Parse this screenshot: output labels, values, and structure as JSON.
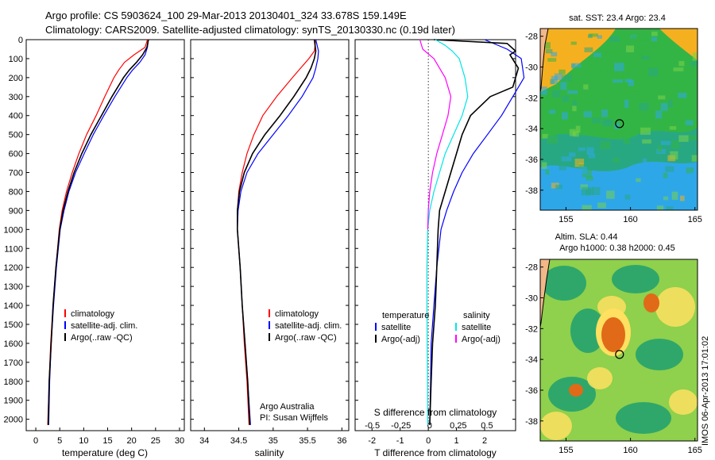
{
  "header": {
    "line1": "Argo profile: CS 5903624_100 29-Mar-2013 20130401_324 33.678S 159.149E",
    "line2": "Climatology: CARS2009. Satellite-adjusted climatology: synTS_20130330.nc (0.19d later)"
  },
  "chart_data": [
    {
      "type": "line",
      "id": "temperature",
      "xlabel": "temperature (deg C)",
      "ylabel": "",
      "xlim": [
        -2,
        31
      ],
      "ylim": [
        2060,
        0
      ],
      "xticks": [
        0,
        5,
        10,
        15,
        20,
        25,
        30
      ],
      "xtick_labels": [
        "0",
        "5",
        "10",
        "15",
        "20",
        "25",
        "30"
      ],
      "yticks": [
        0,
        100,
        200,
        300,
        400,
        500,
        600,
        700,
        800,
        900,
        1000,
        1100,
        1200,
        1300,
        1400,
        1500,
        1600,
        1700,
        1800,
        1900,
        2000
      ],
      "ytick_labels": [
        "0",
        "100",
        "200",
        "300",
        "400",
        "500",
        "600",
        "700",
        "800",
        "900",
        "1000",
        "1100",
        "1200",
        "1300",
        "1400",
        "1500",
        "1600",
        "1700",
        "1800",
        "1900",
        "2000"
      ],
      "legend": {
        "placement": "lower-center",
        "entries": [
          {
            "label": "climatology",
            "color": "#ff0000"
          },
          {
            "label": "satellite-adj. clim.",
            "color": "#0000ff"
          },
          {
            "label": "Argo(..raw -QC)",
            "color": "#000000"
          }
        ]
      },
      "series": [
        {
          "color": "#ff0000",
          "depth": [
            0,
            40,
            80,
            120,
            160,
            200,
            300,
            400,
            500,
            600,
            700,
            800,
            900,
            1000,
            1200,
            1400,
            1600,
            1800,
            2030
          ],
          "values": [
            23.3,
            22.8,
            20.5,
            18.5,
            17.3,
            16.3,
            14.4,
            12.6,
            10.6,
            9.0,
            7.6,
            6.4,
            5.5,
            4.9,
            4.2,
            3.6,
            3.1,
            2.8,
            2.5
          ]
        },
        {
          "color": "#0000ff",
          "depth": [
            0,
            40,
            80,
            120,
            160,
            200,
            300,
            400,
            500,
            600,
            700,
            800,
            900,
            1000,
            1200,
            1400,
            1600,
            1800,
            2030
          ],
          "values": [
            23.5,
            23.3,
            22.8,
            21.7,
            20.2,
            19.0,
            16.5,
            14.2,
            12.0,
            10.1,
            8.3,
            6.9,
            5.9,
            5.1,
            4.3,
            3.7,
            3.2,
            2.9,
            2.7
          ]
        },
        {
          "color": "#000000",
          "depth": [
            0,
            40,
            80,
            120,
            160,
            200,
            300,
            400,
            500,
            600,
            700,
            800,
            900,
            1000,
            1200,
            1400,
            1600,
            1800,
            2030
          ],
          "values": [
            23.5,
            23.2,
            22.3,
            21.0,
            19.5,
            18.3,
            15.9,
            13.7,
            11.5,
            9.6,
            8.0,
            6.7,
            5.7,
            5.0,
            4.2,
            3.6,
            3.2,
            2.8,
            2.6
          ]
        }
      ]
    },
    {
      "type": "line",
      "id": "salinity",
      "xlabel": "salinity",
      "xlim": [
        33.8,
        36.1
      ],
      "ylim": [
        2060,
        0
      ],
      "xticks": [
        34,
        34.5,
        35,
        35.5,
        36
      ],
      "xtick_labels": [
        "34",
        "34.5",
        "35",
        "35.5",
        "36"
      ],
      "legend": {
        "placement": "lower-right",
        "entries": [
          {
            "label": "climatology",
            "color": "#ff0000"
          },
          {
            "label": "satellite-adj. clim.",
            "color": "#0000ff"
          },
          {
            "label": "Argo(..raw -QC)",
            "color": "#000000"
          }
        ]
      },
      "annotation": [
        "Argo Australia",
        "PI: Susan Wijffels"
      ],
      "series": [
        {
          "color": "#ff0000",
          "depth": [
            0,
            60,
            100,
            150,
            200,
            300,
            400,
            500,
            600,
            700,
            800,
            900,
            1000,
            1200,
            1400,
            1600,
            1800,
            2030
          ],
          "values": [
            35.62,
            35.6,
            35.52,
            35.4,
            35.28,
            35.05,
            34.85,
            34.72,
            34.62,
            34.55,
            34.5,
            34.48,
            34.48,
            34.52,
            34.55,
            34.58,
            34.62,
            34.65
          ]
        },
        {
          "color": "#0000ff",
          "depth": [
            0,
            60,
            100,
            150,
            200,
            300,
            400,
            500,
            600,
            700,
            800,
            900,
            1000,
            1200,
            1400,
            1600,
            1800,
            2030
          ],
          "values": [
            35.62,
            35.66,
            35.65,
            35.62,
            35.58,
            35.42,
            35.22,
            35.0,
            34.78,
            34.62,
            34.53,
            34.49,
            34.48,
            34.52,
            34.55,
            34.59,
            34.63,
            34.67
          ]
        },
        {
          "color": "#000000",
          "depth": [
            0,
            60,
            100,
            150,
            200,
            300,
            400,
            500,
            600,
            700,
            800,
            900,
            1000,
            1200,
            1400,
            1600,
            1800,
            2030
          ],
          "values": [
            35.6,
            35.62,
            35.6,
            35.55,
            35.48,
            35.3,
            35.1,
            34.88,
            34.7,
            34.58,
            34.51,
            34.48,
            34.48,
            34.52,
            34.55,
            34.59,
            34.63,
            34.66
          ]
        }
      ]
    },
    {
      "type": "line",
      "id": "difference",
      "xlabel": "T difference from climatology",
      "xlabel2": "S difference from climatology",
      "xlim": [
        -2.6,
        3.1
      ],
      "ylim": [
        2060,
        0
      ],
      "xticks": [
        -2,
        -1,
        0,
        1,
        2
      ],
      "xtick_labels": [
        "-2",
        "-1",
        "0",
        "1",
        "2"
      ],
      "xticks_top": [
        -0.5,
        -0.25,
        0,
        0.25,
        0.5
      ],
      "xtick_labels_top": [
        "-0.5",
        "-0.25",
        "0",
        "0.25",
        "0.5"
      ],
      "legend": {
        "placement": "lower-center",
        "headers": [
          "temperature",
          "salinity"
        ],
        "entries": [
          {
            "label": "satellite",
            "color": "#0000ff"
          },
          {
            "label": "Argo(-adj)",
            "color": "#000000"
          },
          {
            "label": "satellite",
            "color": "#00e5e5"
          },
          {
            "label": "Argo(-adj)",
            "color": "#ff00ff"
          }
        ]
      },
      "series": [
        {
          "color": "#0000ff",
          "depth": [
            0,
            50,
            100,
            200,
            300,
            400,
            500,
            600,
            700,
            800,
            900,
            1000,
            1200,
            1400,
            1600,
            1800,
            2030
          ],
          "values": [
            2.0,
            2.8,
            3.3,
            3.4,
            3.0,
            2.6,
            2.1,
            1.6,
            1.2,
            0.9,
            0.65,
            0.45,
            0.3,
            0.2,
            0.1,
            0.08,
            0.05
          ]
        },
        {
          "color": "#000000",
          "depth": [
            0,
            20,
            60,
            80,
            150,
            250,
            300,
            400,
            500,
            600,
            700,
            800,
            900,
            1000,
            1200,
            1400,
            1600,
            1800,
            2030
          ],
          "values": [
            0.2,
            2.8,
            3.1,
            2.9,
            3.2,
            3.0,
            2.2,
            1.5,
            1.2,
            1.0,
            0.8,
            0.6,
            0.4,
            0.35,
            0.3,
            0.25,
            0.15,
            0.1,
            0.05
          ]
        },
        {
          "color": "#00e5e5",
          "depth": [
            0,
            30,
            60,
            100,
            200,
            300,
            400,
            500,
            600,
            700,
            800,
            900,
            1000,
            1200,
            1400,
            1600,
            1800,
            2030
          ],
          "values": [
            0.25,
            0.6,
            0.85,
            1.1,
            1.3,
            1.4,
            1.2,
            0.9,
            0.6,
            0.4,
            0.2,
            0.05,
            -0.02,
            -0.05,
            -0.05,
            -0.04,
            -0.03,
            -0.02
          ]
        },
        {
          "color": "#ff00ff",
          "depth": [
            0,
            50,
            100,
            200,
            300,
            400,
            500,
            600,
            700,
            800,
            900,
            1000
          ],
          "values": [
            -0.3,
            -0.2,
            0.2,
            0.6,
            0.8,
            0.7,
            0.5,
            0.3,
            0.15,
            0.05,
            0.0,
            -0.02
          ]
        }
      ]
    }
  ],
  "maps": [
    {
      "id": "sst-map",
      "title": "sat. SST: 23.4 Argo: 23.4",
      "xticks": [
        155,
        160,
        165
      ],
      "yticks": [
        -28,
        -30,
        -32,
        -34,
        -36,
        -38
      ],
      "colors": {
        "warm": "#f5b020",
        "green": "#33b545",
        "teal": "#28a882",
        "blue": "#2ea7e8",
        "land": "#f2b88a"
      }
    },
    {
      "id": "sla-map",
      "title_line1": "Altim. SLA: 0.44",
      "title_line2": "Argo h1000: 0.38 h2000: 0.45",
      "xticks": [
        155,
        160,
        165
      ],
      "yticks": [
        -28,
        -30,
        -32,
        -34,
        -36,
        -38
      ],
      "colors": {
        "high": "#e06a18",
        "mid": "#ffe060",
        "low": "#1fa070",
        "base": "#8fd04c",
        "land": "#f2b88a"
      }
    }
  ],
  "footer_stamp": "IMOS 06-Apr-2013 17:01:02"
}
